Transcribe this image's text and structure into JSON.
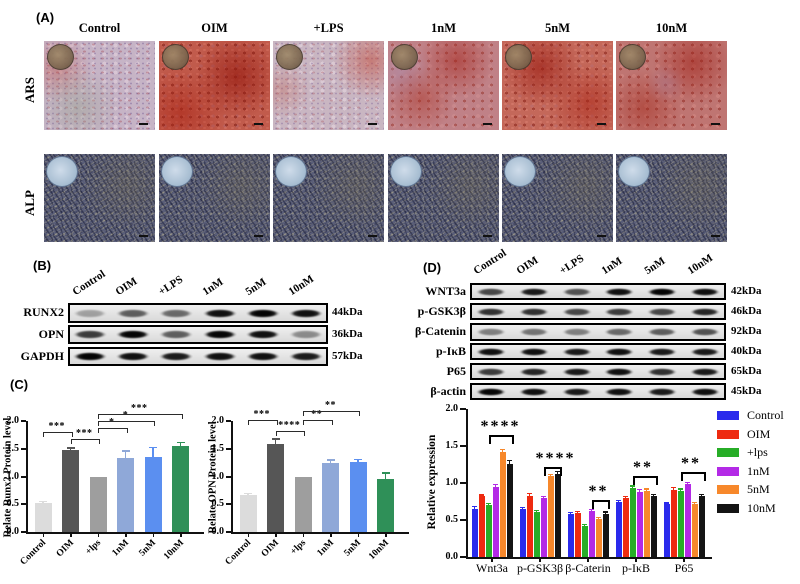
{
  "figure": {
    "panel_a": {
      "label": "(A)",
      "conditions": [
        "Control",
        "OIM",
        "+LPS",
        "1nM",
        "5nM",
        "10nM"
      ],
      "stain_rows": [
        "ARS",
        "ALP"
      ]
    },
    "panel_b": {
      "label": "(B)",
      "conditions": [
        "Control",
        "OIM",
        "+LPS",
        "1nM",
        "5nM",
        "10nM"
      ],
      "blot_rows": [
        {
          "protein": "RUNX2",
          "mw": "44kDa",
          "band_intensities": [
            0.3,
            0.6,
            0.55,
            0.95,
            1,
            0.95
          ]
        },
        {
          "protein": "OPN",
          "mw": "36kDa",
          "band_intensities": [
            0.75,
            1,
            0.6,
            1,
            0.95,
            0.4
          ]
        },
        {
          "protein": "GAPDH",
          "mw": "57kDa",
          "band_intensities": [
            1,
            0.95,
            0.9,
            0.95,
            0.95,
            0.9
          ]
        }
      ]
    },
    "panel_c": {
      "label": "(C)"
    },
    "panel_d": {
      "label": "(D)",
      "conditions": [
        "Control",
        "OIM",
        "+LPS",
        "1nM",
        "5nM",
        "10nM"
      ],
      "blot_rows": [
        {
          "protein": "WNT3a",
          "mw": "42kDa",
          "band_intensities": [
            0.7,
            0.9,
            0.65,
            0.95,
            1,
            0.95
          ]
        },
        {
          "protein": "p-GSK3β",
          "mw": "46kDa",
          "band_intensities": [
            0.8,
            0.8,
            0.7,
            0.75,
            0.7,
            0.85
          ]
        },
        {
          "protein": "β-Catenin",
          "mw": "92kDa",
          "band_intensities": [
            0.45,
            0.5,
            0.45,
            0.55,
            0.6,
            0.65
          ]
        },
        {
          "protein": "p-IκB",
          "mw": "40kDa",
          "band_intensities": [
            0.95,
            0.95,
            0.9,
            0.95,
            0.9,
            0.9
          ]
        },
        {
          "protein": "P65",
          "mw": "65kDa",
          "band_intensities": [
            0.75,
            0.85,
            0.9,
            0.95,
            0.8,
            0.9
          ]
        },
        {
          "protein": "β-actin",
          "mw": "45kDa",
          "band_intensities": [
            1,
            0.95,
            0.9,
            0.95,
            0.9,
            0.95
          ]
        }
      ]
    }
  },
  "chart_data": [
    {
      "id": "runx2_chart",
      "type": "bar",
      "ylabel": "Relate Runx2 Protein level",
      "categories": [
        "Control",
        "OIM",
        "+lps",
        "1nM",
        "5nM",
        "10nM"
      ],
      "values": [
        0.52,
        1.47,
        1.0,
        1.34,
        1.36,
        1.55
      ],
      "errors": [
        0.03,
        0.05,
        0,
        0.12,
        0.17,
        0.07
      ],
      "bar_colors": [
        "#dcdcdc",
        "#565656",
        "#9e9e9e",
        "#8fa8d8",
        "#5b8ff0",
        "#2f9058"
      ],
      "ylim": [
        0,
        2.0
      ],
      "yticks": [
        "0.0",
        "0.5",
        "1.0",
        "1.5",
        "2.0"
      ],
      "significance": [
        {
          "from": 0,
          "to": 1,
          "stars": "***",
          "y": 1.8
        },
        {
          "from": 1,
          "to": 2,
          "stars": "***",
          "y": 1.68
        },
        {
          "from": 2,
          "to": 3,
          "stars": "*",
          "y": 1.88
        },
        {
          "from": 2,
          "to": 4,
          "stars": "*",
          "y": 2.0
        },
        {
          "from": 2,
          "to": 5,
          "stars": "***",
          "y": 2.12
        }
      ]
    },
    {
      "id": "opn_chart",
      "type": "bar",
      "ylabel": "Relate OPN Protein level",
      "categories": [
        "Control",
        "OIM",
        "+lps",
        "1nM",
        "5nM",
        "10nM"
      ],
      "values": [
        0.66,
        1.59,
        1.0,
        1.25,
        1.26,
        0.96
      ],
      "errors": [
        0.04,
        0.09,
        0,
        0.05,
        0.05,
        0.11
      ],
      "bar_colors": [
        "#dcdcdc",
        "#565656",
        "#9e9e9e",
        "#8fa8d8",
        "#5b8ff0",
        "#2f9058"
      ],
      "ylim": [
        0,
        2.0
      ],
      "yticks": [
        "0.0",
        "0.5",
        "1.0",
        "1.5",
        "2.0"
      ],
      "significance": [
        {
          "from": 0,
          "to": 1,
          "stars": "***",
          "y": 2.02
        },
        {
          "from": 1,
          "to": 2,
          "stars": "****",
          "y": 1.82
        },
        {
          "from": 2,
          "to": 3,
          "stars": "**",
          "y": 2.02
        },
        {
          "from": 2,
          "to": 4,
          "stars": "**",
          "y": 2.18
        }
      ]
    },
    {
      "id": "relative_expression_chart",
      "type": "grouped_bar",
      "ylabel": "Relative expression",
      "categories": [
        "Wnt3a",
        "p-GSK3β",
        "β-Caterin",
        "p-IκB",
        "P65"
      ],
      "series": [
        {
          "name": "Control",
          "color": "#2a2aec",
          "values": [
            0.65,
            0.65,
            0.58,
            0.74,
            0.71
          ],
          "errors": [
            0.03,
            0.02,
            0.02,
            0.02,
            0.02
          ]
        },
        {
          "name": "OIM",
          "color": "#ee2a10",
          "values": [
            0.82,
            0.83,
            0.6,
            0.8,
            0.91
          ],
          "errors": [
            0.02,
            0.03,
            0.02,
            0.02,
            0.03
          ]
        },
        {
          "name": "+lps",
          "color": "#27ad27",
          "values": [
            0.7,
            0.61,
            0.42,
            0.93,
            0.89
          ],
          "errors": [
            0.02,
            0.02,
            0.02,
            0.03,
            0.03
          ]
        },
        {
          "name": "1nM",
          "color": "#b32ae6",
          "values": [
            0.95,
            0.8,
            0.62,
            0.88,
            0.98
          ],
          "errors": [
            0.03,
            0.02,
            0.02,
            0.03,
            0.03
          ]
        },
        {
          "name": "5nM",
          "color": "#f7882b",
          "values": [
            1.42,
            1.09,
            0.52,
            0.89,
            0.71
          ],
          "errors": [
            0.03,
            0.03,
            0.02,
            0.03,
            0.03
          ]
        },
        {
          "name": "10nM",
          "color": "#141414",
          "values": [
            1.26,
            1.12,
            0.58,
            0.82,
            0.82
          ],
          "errors": [
            0.04,
            0.04,
            0.03,
            0.03,
            0.03
          ]
        }
      ],
      "ylim": [
        0,
        2.0
      ],
      "yticks": [
        "0.0",
        "0.5",
        "1.0",
        "1.5",
        "2.0"
      ],
      "legend_position": "right",
      "significance": [
        {
          "category": 0,
          "from_series": 2,
          "to_series": 5,
          "stars": "****",
          "y": 1.65
        },
        {
          "category": 1,
          "from_series": 3,
          "to_series": 5,
          "stars": "****",
          "y": 1.22
        },
        {
          "category": 2,
          "from_series": 3,
          "to_series": 5,
          "stars": "**",
          "y": 0.77
        },
        {
          "category": 3,
          "from_series": 2,
          "to_series": 5,
          "stars": "**",
          "y": 1.09
        },
        {
          "category": 4,
          "from_series": 2,
          "to_series": 5,
          "stars": "**",
          "y": 1.15
        }
      ]
    }
  ]
}
